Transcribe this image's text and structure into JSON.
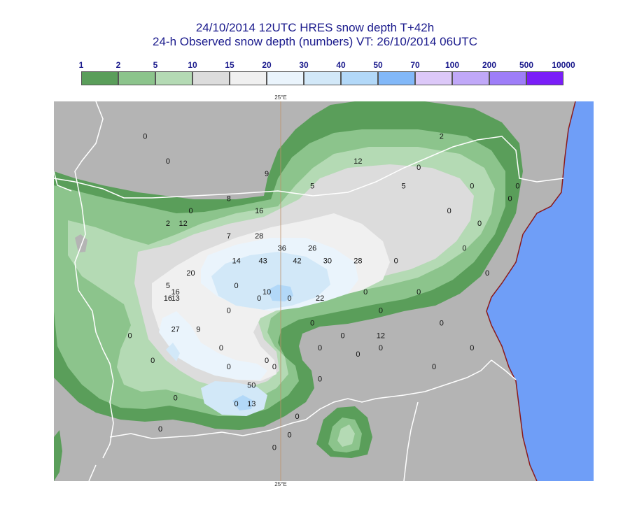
{
  "header": {
    "title_line1": "24/10/2014 12UTC HRES snow depth T+42h",
    "title_line2": "24-h Observed snow depth (numbers) VT: 26/10/2014 06UTC"
  },
  "legend": {
    "thresholds": [
      "1",
      "2",
      "5",
      "10",
      "15",
      "20",
      "30",
      "40",
      "50",
      "70",
      "100",
      "200",
      "500",
      "10000"
    ],
    "colors": [
      "#5a9e5a",
      "#8cc48c",
      "#b4dab4",
      "#dcdcdc",
      "#f0f0f0",
      "#eaf4fc",
      "#d2e8f8",
      "#b2d8f8",
      "#82b8f8",
      "#dcc8f8",
      "#c0a8f8",
      "#9e7ef8",
      "#7a1ef8"
    ]
  },
  "map": {
    "lon_label_top": "25°E",
    "lon_label_bottom": "25°E",
    "colors": {
      "background": "#b4b4b4",
      "sea": "#6f9ef7",
      "coast": "#8b1a1a",
      "border": "#ffffff",
      "meridian": "#c0906a"
    },
    "observations": [
      {
        "value": "0",
        "lon": 23.2,
        "lat": 44.1
      },
      {
        "value": "0",
        "lon": 23.5,
        "lat": 43.9
      },
      {
        "value": "9",
        "lon": 24.8,
        "lat": 43.8
      },
      {
        "value": "5",
        "lon": 25.4,
        "lat": 43.7
      },
      {
        "value": "12",
        "lon": 26.0,
        "lat": 43.9
      },
      {
        "value": "0",
        "lon": 26.8,
        "lat": 43.85
      },
      {
        "value": "5",
        "lon": 26.6,
        "lat": 43.7
      },
      {
        "value": "2",
        "lon": 27.1,
        "lat": 44.1
      },
      {
        "value": "0",
        "lon": 27.5,
        "lat": 43.7
      },
      {
        "value": "0",
        "lon": 28.1,
        "lat": 43.7
      },
      {
        "value": "0",
        "lon": 28.0,
        "lat": 43.6
      },
      {
        "value": "8",
        "lon": 24.3,
        "lat": 43.6
      },
      {
        "value": "0",
        "lon": 23.8,
        "lat": 43.5
      },
      {
        "value": "16",
        "lon": 24.7,
        "lat": 43.5
      },
      {
        "value": "0",
        "lon": 27.2,
        "lat": 43.5
      },
      {
        "value": "2",
        "lon": 23.5,
        "lat": 43.4
      },
      {
        "value": "12",
        "lon": 23.7,
        "lat": 43.4
      },
      {
        "value": "7",
        "lon": 24.3,
        "lat": 43.3
      },
      {
        "value": "28",
        "lon": 24.7,
        "lat": 43.3
      },
      {
        "value": "0",
        "lon": 27.6,
        "lat": 43.4
      },
      {
        "value": "36",
        "lon": 25.0,
        "lat": 43.2
      },
      {
        "value": "26",
        "lon": 25.4,
        "lat": 43.2
      },
      {
        "value": "0",
        "lon": 27.4,
        "lat": 43.2
      },
      {
        "value": "14",
        "lon": 24.4,
        "lat": 43.1
      },
      {
        "value": "43",
        "lon": 24.75,
        "lat": 43.1
      },
      {
        "value": "42",
        "lon": 25.2,
        "lat": 43.1
      },
      {
        "value": "30",
        "lon": 25.6,
        "lat": 43.1
      },
      {
        "value": "28",
        "lon": 26.0,
        "lat": 43.1
      },
      {
        "value": "0",
        "lon": 26.5,
        "lat": 43.1
      },
      {
        "value": "20",
        "lon": 23.8,
        "lat": 43.0
      },
      {
        "value": "0",
        "lon": 27.7,
        "lat": 43.0
      },
      {
        "value": "5",
        "lon": 23.5,
        "lat": 42.9
      },
      {
        "value": "0",
        "lon": 24.4,
        "lat": 42.9
      },
      {
        "value": "16",
        "lon": 23.6,
        "lat": 42.85
      },
      {
        "value": "10",
        "lon": 24.8,
        "lat": 42.85
      },
      {
        "value": "0",
        "lon": 24.7,
        "lat": 42.8
      },
      {
        "value": "0",
        "lon": 25.1,
        "lat": 42.8
      },
      {
        "value": "22",
        "lon": 25.5,
        "lat": 42.8
      },
      {
        "value": "0",
        "lon": 26.1,
        "lat": 42.85
      },
      {
        "value": "0",
        "lon": 26.8,
        "lat": 42.85
      },
      {
        "value": "16",
        "lon": 23.5,
        "lat": 42.8
      },
      {
        "value": "13",
        "lon": 23.6,
        "lat": 42.8
      },
      {
        "value": "0",
        "lon": 24.3,
        "lat": 42.7
      },
      {
        "value": "0",
        "lon": 26.3,
        "lat": 42.7
      },
      {
        "value": "0",
        "lon": 25.4,
        "lat": 42.6
      },
      {
        "value": "0",
        "lon": 27.1,
        "lat": 42.6
      },
      {
        "value": "27",
        "lon": 23.6,
        "lat": 42.55
      },
      {
        "value": "9",
        "lon": 23.9,
        "lat": 42.55
      },
      {
        "value": "0",
        "lon": 23.0,
        "lat": 42.5
      },
      {
        "value": "0",
        "lon": 25.8,
        "lat": 42.5
      },
      {
        "value": "12",
        "lon": 26.3,
        "lat": 42.5
      },
      {
        "value": "0",
        "lon": 24.2,
        "lat": 42.4
      },
      {
        "value": "0",
        "lon": 25.5,
        "lat": 42.4
      },
      {
        "value": "0",
        "lon": 26.3,
        "lat": 42.4
      },
      {
        "value": "0",
        "lon": 27.5,
        "lat": 42.4
      },
      {
        "value": "0",
        "lon": 26.0,
        "lat": 42.35
      },
      {
        "value": "0",
        "lon": 24.8,
        "lat": 42.3
      },
      {
        "value": "0",
        "lon": 24.9,
        "lat": 42.25
      },
      {
        "value": "0",
        "lon": 23.3,
        "lat": 42.3
      },
      {
        "value": "0",
        "lon": 24.3,
        "lat": 42.25
      },
      {
        "value": "0",
        "lon": 27.0,
        "lat": 42.25
      },
      {
        "value": "0",
        "lon": 25.5,
        "lat": 42.15
      },
      {
        "value": "50",
        "lon": 24.6,
        "lat": 42.1
      },
      {
        "value": "0",
        "lon": 23.6,
        "lat": 42.0
      },
      {
        "value": "0",
        "lon": 24.4,
        "lat": 41.95
      },
      {
        "value": "13",
        "lon": 24.6,
        "lat": 41.95
      },
      {
        "value": "0",
        "lon": 25.2,
        "lat": 41.85
      },
      {
        "value": "0",
        "lon": 23.4,
        "lat": 41.75
      },
      {
        "value": "0",
        "lon": 25.1,
        "lat": 41.7
      },
      {
        "value": "0",
        "lon": 24.9,
        "lat": 41.6
      }
    ]
  }
}
